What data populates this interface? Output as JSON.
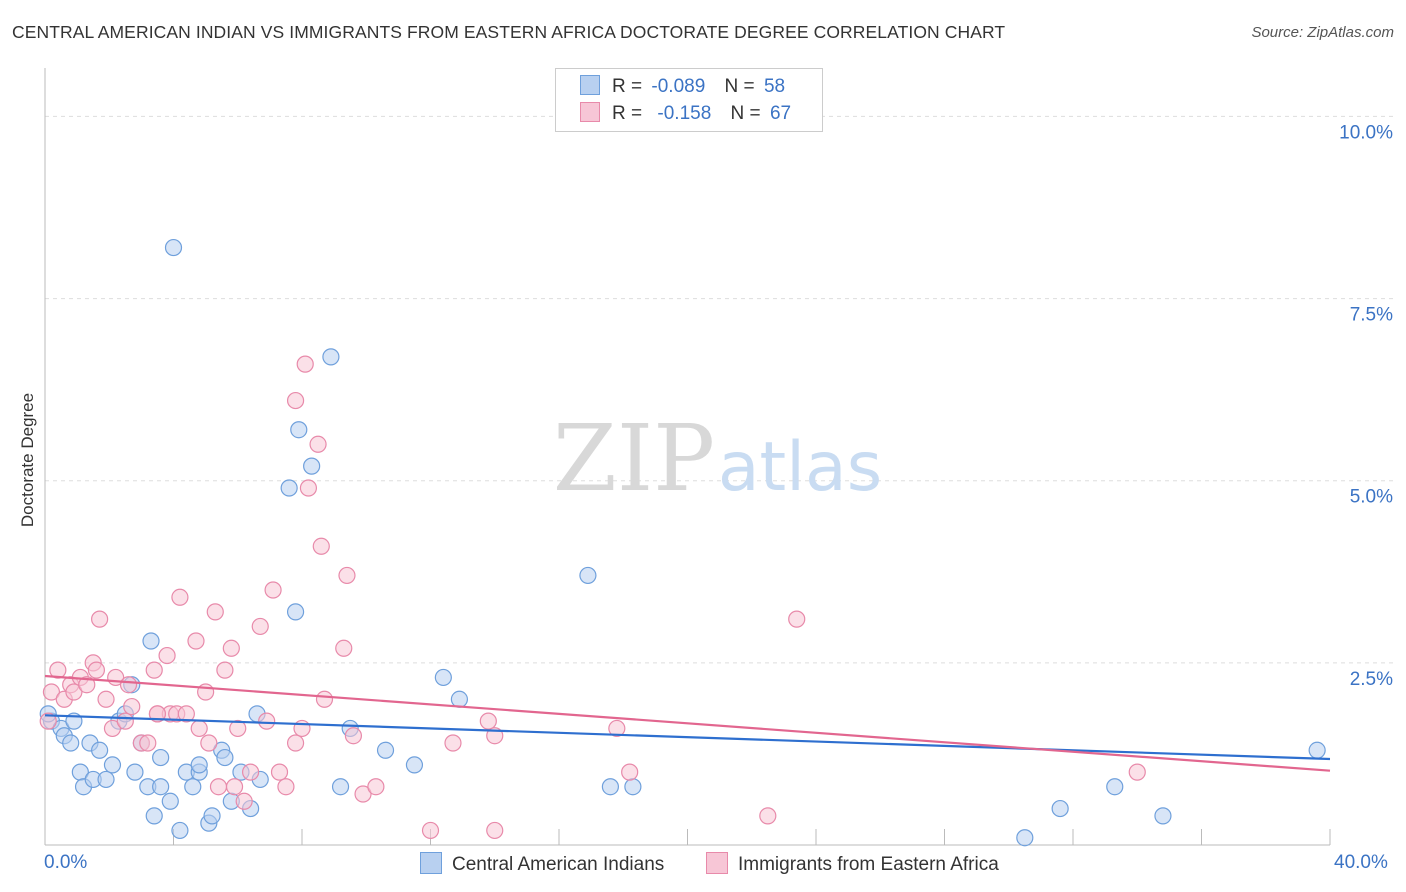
{
  "chart_data": {
    "type": "scatter",
    "title": "CENTRAL AMERICAN INDIAN VS IMMIGRANTS FROM EASTERN AFRICA DOCTORATE DEGREE CORRELATION CHART",
    "source": "Source: ZipAtlas.com",
    "ylabel": "Doctorate Degree",
    "xlabel": "",
    "xlim": [
      0,
      40
    ],
    "ylim": [
      0,
      10.5
    ],
    "x_tick_labels": [
      "0.0%",
      "40.0%"
    ],
    "y_ticks": [
      {
        "value": 2.5,
        "label": "2.5%"
      },
      {
        "value": 5.0,
        "label": "5.0%"
      },
      {
        "value": 7.5,
        "label": "7.5%"
      },
      {
        "value": 10.0,
        "label": "10.0%"
      }
    ],
    "watermark": {
      "zip": "ZIP",
      "atlas": "atlas"
    },
    "legend_stats": [
      {
        "r_label": "R =",
        "r_value": "-0.089",
        "n_label": "N =",
        "n_value": "58"
      },
      {
        "r_label": "R =",
        "r_value": "-0.158",
        "n_label": "N =",
        "n_value": "67"
      }
    ],
    "series": [
      {
        "name": "Central American Indians",
        "color": "#6fa0dc",
        "fill": "#b8d0f0",
        "line_color": "#2e6fcf",
        "trend": {
          "x": [
            0,
            40
          ],
          "y": [
            1.78,
            1.18
          ]
        },
        "points": [
          [
            0.2,
            1.7
          ],
          [
            0.5,
            1.6
          ],
          [
            0.6,
            1.5
          ],
          [
            0.8,
            1.4
          ],
          [
            0.9,
            1.7
          ],
          [
            1.1,
            1.0
          ],
          [
            1.2,
            0.8
          ],
          [
            1.4,
            1.4
          ],
          [
            1.5,
            0.9
          ],
          [
            1.7,
            1.3
          ],
          [
            1.9,
            0.9
          ],
          [
            2.1,
            1.1
          ],
          [
            2.3,
            1.7
          ],
          [
            2.5,
            1.8
          ],
          [
            2.7,
            2.2
          ],
          [
            2.8,
            1.0
          ],
          [
            3.0,
            1.4
          ],
          [
            3.2,
            0.8
          ],
          [
            3.3,
            2.8
          ],
          [
            3.4,
            0.4
          ],
          [
            3.6,
            0.8
          ],
          [
            3.6,
            1.2
          ],
          [
            3.9,
            0.6
          ],
          [
            4.0,
            8.2
          ],
          [
            4.2,
            0.2
          ],
          [
            4.4,
            1.0
          ],
          [
            4.6,
            0.8
          ],
          [
            4.8,
            1.0
          ],
          [
            4.8,
            1.1
          ],
          [
            5.1,
            0.3
          ],
          [
            5.2,
            0.4
          ],
          [
            5.5,
            1.3
          ],
          [
            5.6,
            1.2
          ],
          [
            5.8,
            0.6
          ],
          [
            6.1,
            1.0
          ],
          [
            6.4,
            0.5
          ],
          [
            6.6,
            1.8
          ],
          [
            6.7,
            0.9
          ],
          [
            7.6,
            4.9
          ],
          [
            7.8,
            3.2
          ],
          [
            7.9,
            5.7
          ],
          [
            8.3,
            5.2
          ],
          [
            8.9,
            6.7
          ],
          [
            9.2,
            0.8
          ],
          [
            9.5,
            1.6
          ],
          [
            10.6,
            1.3
          ],
          [
            11.5,
            1.1
          ],
          [
            12.4,
            2.3
          ],
          [
            12.9,
            2.0
          ],
          [
            16.9,
            3.7
          ],
          [
            17.6,
            0.8
          ],
          [
            18.3,
            0.8
          ],
          [
            30.5,
            0.1
          ],
          [
            31.6,
            0.5
          ],
          [
            33.3,
            0.8
          ],
          [
            34.8,
            0.4
          ],
          [
            39.6,
            1.3
          ],
          [
            0.1,
            1.8
          ]
        ]
      },
      {
        "name": "Immigrants from Eastern Africa",
        "color": "#e88aaa",
        "fill": "#f7c6d6",
        "line_color": "#e2668f",
        "trend": {
          "x": [
            0,
            40
          ],
          "y": [
            2.32,
            1.02
          ]
        },
        "points": [
          [
            0.2,
            2.1
          ],
          [
            0.4,
            2.4
          ],
          [
            0.6,
            2.0
          ],
          [
            0.8,
            2.2
          ],
          [
            0.9,
            2.1
          ],
          [
            1.1,
            2.3
          ],
          [
            1.3,
            2.2
          ],
          [
            1.5,
            2.5
          ],
          [
            1.6,
            2.4
          ],
          [
            1.7,
            3.1
          ],
          [
            1.9,
            2.0
          ],
          [
            2.1,
            1.6
          ],
          [
            2.2,
            2.3
          ],
          [
            2.5,
            1.7
          ],
          [
            2.6,
            2.2
          ],
          [
            2.7,
            1.9
          ],
          [
            3.0,
            1.4
          ],
          [
            3.2,
            1.4
          ],
          [
            3.4,
            2.4
          ],
          [
            3.5,
            1.8
          ],
          [
            3.8,
            2.6
          ],
          [
            3.9,
            1.8
          ],
          [
            4.1,
            1.8
          ],
          [
            4.2,
            3.4
          ],
          [
            4.4,
            1.8
          ],
          [
            4.7,
            2.8
          ],
          [
            4.8,
            1.6
          ],
          [
            5.0,
            2.1
          ],
          [
            5.1,
            1.4
          ],
          [
            5.3,
            3.2
          ],
          [
            5.4,
            0.8
          ],
          [
            5.6,
            2.4
          ],
          [
            5.8,
            2.7
          ],
          [
            5.9,
            0.8
          ],
          [
            6.0,
            1.6
          ],
          [
            6.2,
            0.6
          ],
          [
            6.4,
            1.0
          ],
          [
            6.7,
            3.0
          ],
          [
            6.9,
            1.7
          ],
          [
            7.1,
            3.5
          ],
          [
            7.3,
            1.0
          ],
          [
            7.5,
            0.8
          ],
          [
            7.8,
            1.4
          ],
          [
            8.0,
            1.6
          ],
          [
            8.2,
            4.9
          ],
          [
            8.1,
            6.6
          ],
          [
            7.8,
            6.1
          ],
          [
            8.5,
            5.5
          ],
          [
            8.6,
            4.1
          ],
          [
            8.7,
            2.0
          ],
          [
            9.3,
            2.7
          ],
          [
            9.4,
            3.7
          ],
          [
            9.6,
            1.5
          ],
          [
            9.9,
            0.7
          ],
          [
            10.3,
            0.8
          ],
          [
            12.0,
            0.2
          ],
          [
            12.7,
            1.4
          ],
          [
            13.8,
            1.7
          ],
          [
            14.0,
            1.5
          ],
          [
            14.0,
            0.2
          ],
          [
            17.8,
            1.6
          ],
          [
            18.2,
            1.0
          ],
          [
            22.5,
            0.4
          ],
          [
            23.4,
            3.1
          ],
          [
            34.0,
            1.0
          ],
          [
            0.1,
            1.7
          ],
          [
            3.5,
            1.8
          ]
        ]
      }
    ]
  }
}
